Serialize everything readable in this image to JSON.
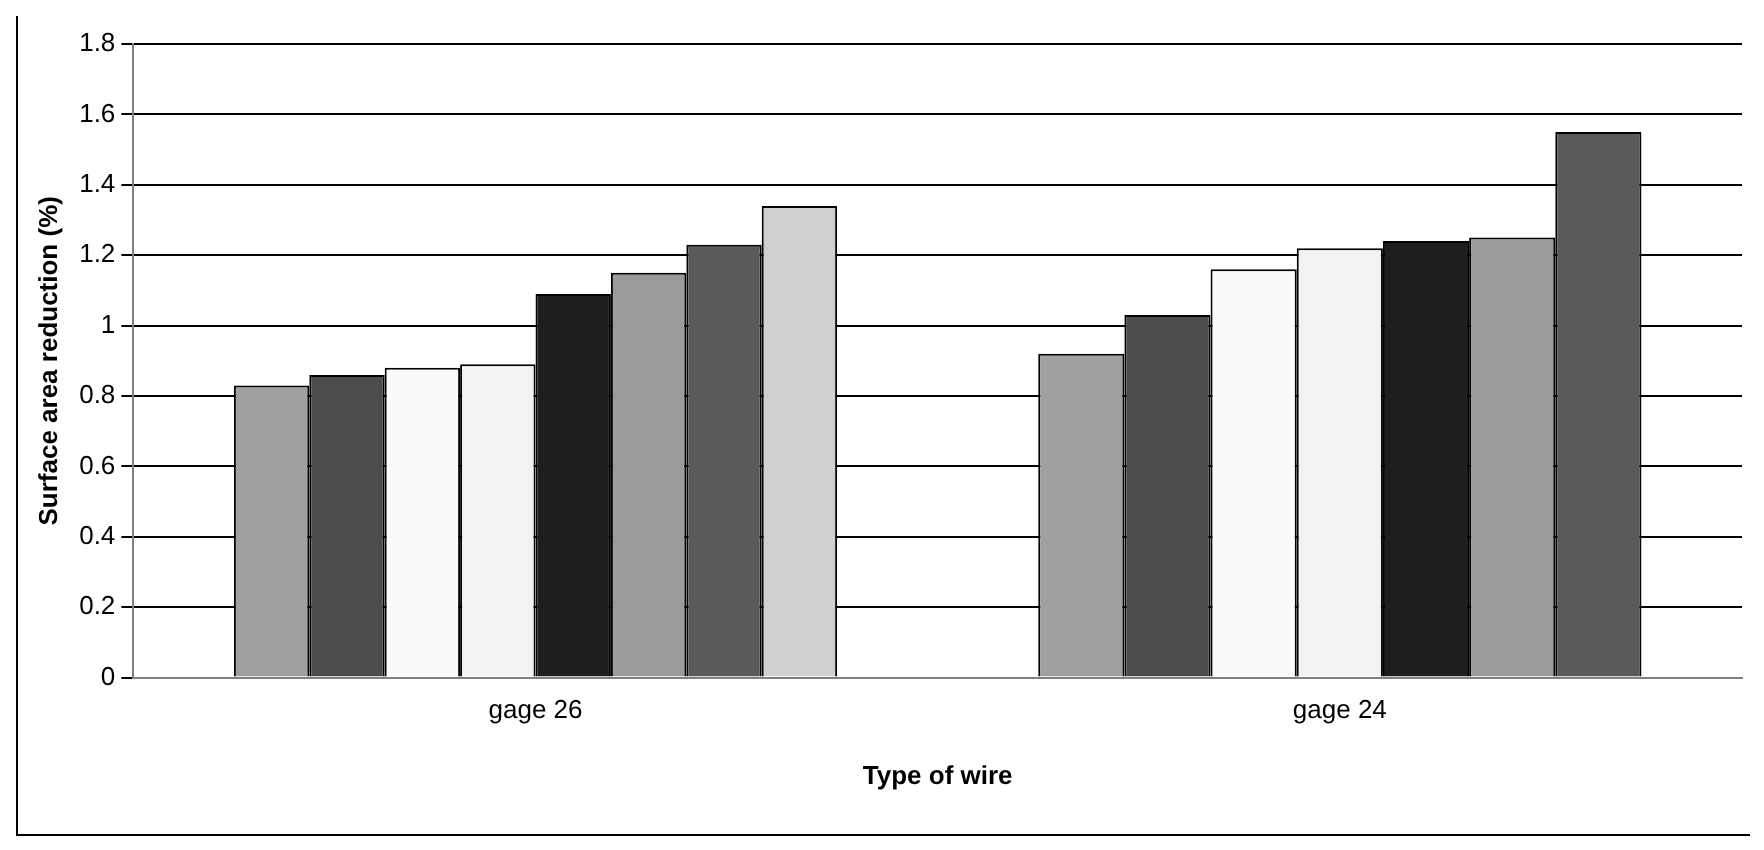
{
  "chart_data": {
    "type": "bar",
    "xlabel": "Type of wire",
    "ylabel": "Surface area reduction (%)",
    "categories": [
      "gage 26",
      "gage 24"
    ],
    "series": [
      {
        "color": "#a0a0a0",
        "values": [
          0.83,
          0.92
        ]
      },
      {
        "color": "#4d4d4d",
        "values": [
          0.86,
          1.03
        ]
      },
      {
        "color": "#fafafa",
        "values": [
          0.88,
          1.16
        ]
      },
      {
        "color": "#f2f2f2",
        "values": [
          0.89,
          1.22
        ]
      },
      {
        "color": "#1e1e1e",
        "values": [
          1.09,
          1.24
        ]
      },
      {
        "color": "#9b9b9b",
        "values": [
          1.15,
          1.25
        ]
      },
      {
        "color": "#5a5a5a",
        "values": [
          1.23,
          1.55
        ]
      },
      {
        "color": "#d0d0d0",
        "values": [
          1.34,
          null
        ]
      }
    ],
    "ylim": [
      0,
      1.8
    ],
    "yticks": [
      0,
      0.2,
      0.4,
      0.6,
      0.8,
      1,
      1.2,
      1.4,
      1.6,
      1.8
    ],
    "grid": "y",
    "legend": false
  }
}
